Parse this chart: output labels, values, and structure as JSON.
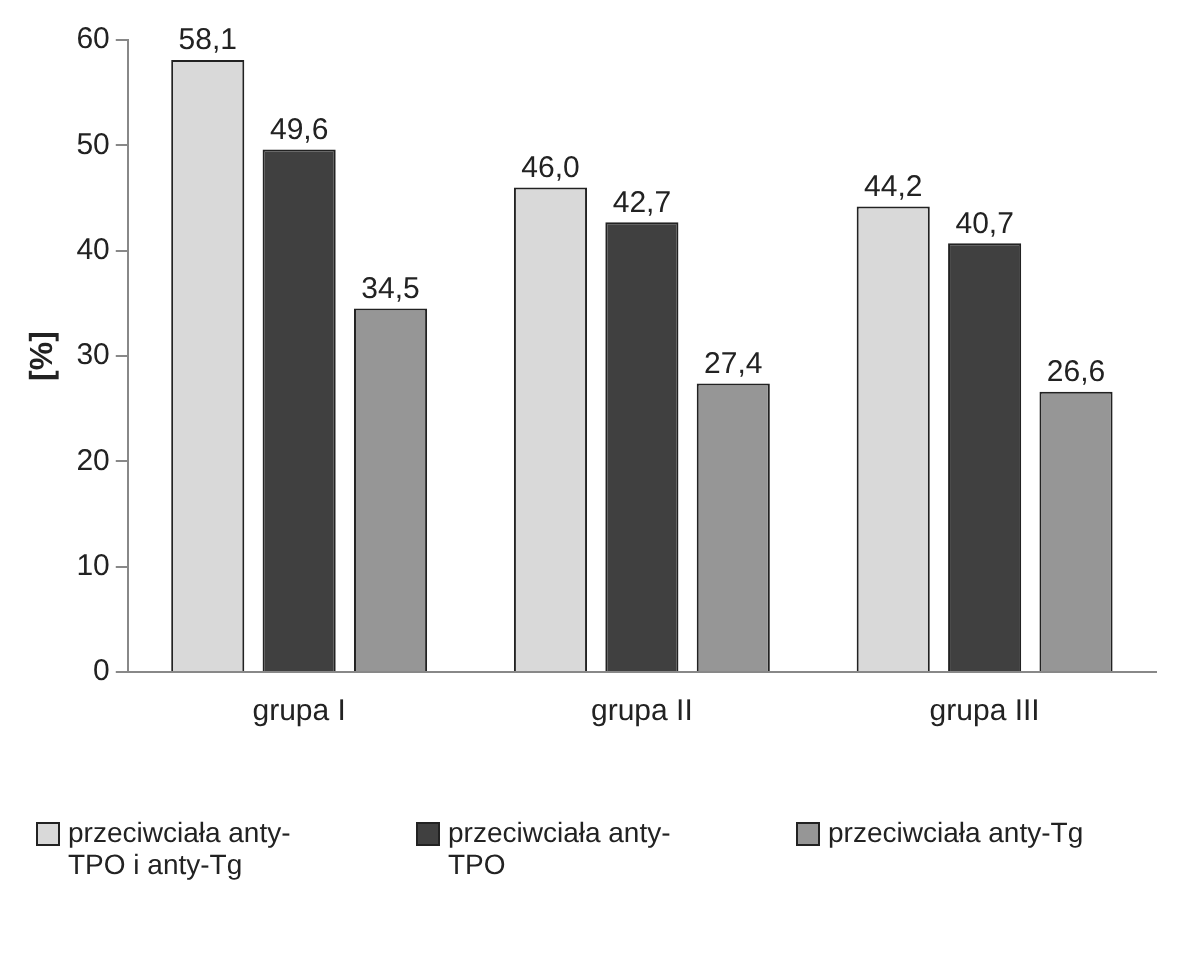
{
  "chart_data": {
    "type": "bar",
    "ylabel": "[%]",
    "categories": [
      "grupa I",
      "grupa II",
      "grupa III"
    ],
    "series": [
      {
        "name": "przeciwciała anty-TPO i anty-Tg",
        "color": "#d9d9d9",
        "values": [
          58.1,
          46.0,
          44.2
        ],
        "value_labels": [
          "58,1",
          "46,0",
          "44,2"
        ]
      },
      {
        "name": "przeciwciała anty-TPO",
        "color": "#404040",
        "values": [
          49.6,
          42.7,
          40.7
        ],
        "value_labels": [
          "49,6",
          "42,7",
          "40,7"
        ]
      },
      {
        "name": "przeciwciała anty-Tg",
        "color": "#969696",
        "values": [
          34.5,
          27.4,
          26.6
        ],
        "value_labels": [
          "34,5",
          "27,4",
          "26,6"
        ]
      }
    ],
    "ylim": [
      0,
      60
    ],
    "yticks": [
      0,
      10,
      20,
      30,
      40,
      50,
      60
    ],
    "grid": false,
    "legend": "bottom"
  }
}
